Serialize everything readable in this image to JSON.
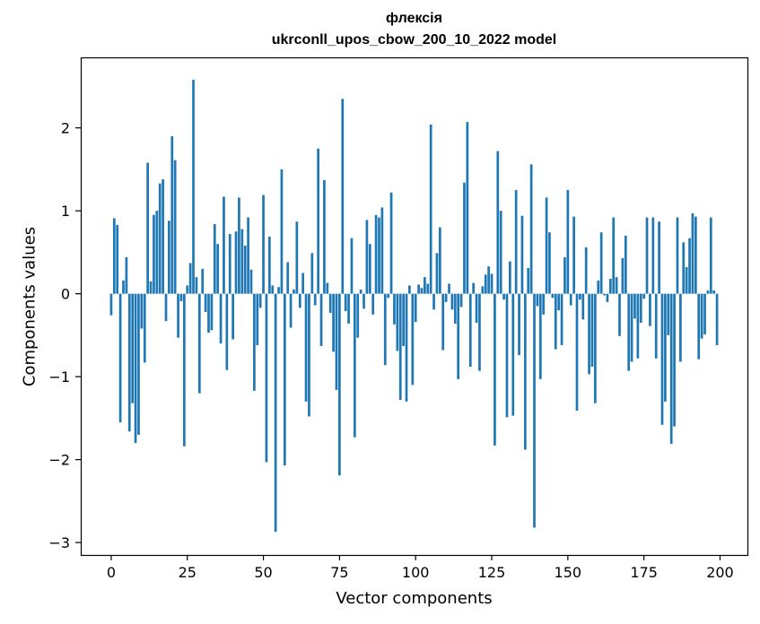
{
  "chart_data": {
    "type": "bar",
    "title": "флексія",
    "subtitle": "ukrconll_upos_cbow_200_10_2022 model",
    "xlabel": "Vector components",
    "ylabel": "Components values",
    "xlim": [
      -10,
      209
    ],
    "ylim": [
      -3.15,
      2.85
    ],
    "xticks": [
      0,
      25,
      50,
      75,
      100,
      125,
      150,
      175,
      200
    ],
    "yticks": [
      -3,
      -2,
      -1,
      0,
      1,
      2
    ],
    "ytick_labels": [
      "−3",
      "−2",
      "−1",
      "0",
      "1",
      "2"
    ],
    "grid": false,
    "bar_color": "#1f77b4",
    "x": [
      0,
      1,
      2,
      3,
      4,
      5,
      6,
      7,
      8,
      9,
      10,
      11,
      12,
      13,
      14,
      15,
      16,
      17,
      18,
      19,
      20,
      21,
      22,
      23,
      24,
      25,
      26,
      27,
      28,
      29,
      30,
      31,
      32,
      33,
      34,
      35,
      36,
      37,
      38,
      39,
      40,
      41,
      42,
      43,
      44,
      45,
      46,
      47,
      48,
      49,
      50,
      51,
      52,
      53,
      54,
      55,
      56,
      57,
      58,
      59,
      60,
      61,
      62,
      63,
      64,
      65,
      66,
      67,
      68,
      69,
      70,
      71,
      72,
      73,
      74,
      75,
      76,
      77,
      78,
      79,
      80,
      81,
      82,
      83,
      84,
      85,
      86,
      87,
      88,
      89,
      90,
      91,
      92,
      93,
      94,
      95,
      96,
      97,
      98,
      99,
      100,
      101,
      102,
      103,
      104,
      105,
      106,
      107,
      108,
      109,
      110,
      111,
      112,
      113,
      114,
      115,
      116,
      117,
      118,
      119,
      120,
      121,
      122,
      123,
      124,
      125,
      126,
      127,
      128,
      129,
      130,
      131,
      132,
      133,
      134,
      135,
      136,
      137,
      138,
      139,
      140,
      141,
      142,
      143,
      144,
      145,
      146,
      147,
      148,
      149,
      150,
      151,
      152,
      153,
      154,
      155,
      156,
      157,
      158,
      159,
      160,
      161,
      162,
      163,
      164,
      165,
      166,
      167,
      168,
      169,
      170,
      171,
      172,
      173,
      174,
      175,
      176,
      177,
      178,
      179,
      180,
      181,
      182,
      183,
      184,
      185,
      186,
      187,
      188,
      189,
      190,
      191,
      192,
      193,
      194,
      195,
      196,
      197,
      198,
      199
    ],
    "values": [
      -0.26,
      0.91,
      0.83,
      -1.55,
      0.16,
      0.44,
      -1.66,
      -1.32,
      -1.8,
      -1.7,
      -0.42,
      -0.83,
      1.58,
      0.15,
      0.95,
      1.0,
      1.33,
      1.38,
      -0.33,
      0.88,
      1.9,
      1.61,
      -0.53,
      -0.09,
      -1.84,
      0.1,
      0.37,
      2.58,
      0.2,
      -1.2,
      0.3,
      -0.22,
      -0.47,
      -0.44,
      0.84,
      0.6,
      -0.6,
      1.17,
      -0.92,
      0.72,
      -0.55,
      0.75,
      1.16,
      0.78,
      0.58,
      0.92,
      0.29,
      -1.17,
      -0.62,
      -0.17,
      1.19,
      -2.03,
      0.69,
      0.1,
      -2.87,
      0.08,
      1.5,
      -2.07,
      0.38,
      -0.41,
      0.05,
      0.87,
      -0.17,
      0.25,
      -1.3,
      -1.48,
      0.49,
      -0.14,
      1.75,
      -0.63,
      1.37,
      0.13,
      -0.23,
      -0.7,
      -1.16,
      -2.19,
      2.35,
      -0.21,
      -0.36,
      0.67,
      -1.73,
      -0.53,
      0.05,
      -0.18,
      0.89,
      0.6,
      -0.25,
      0.95,
      0.92,
      1.04,
      -0.86,
      -0.05,
      1.22,
      -0.37,
      -0.69,
      -1.28,
      -0.63,
      -1.3,
      0.1,
      -1.1,
      -0.34,
      0.11,
      0.07,
      0.2,
      0.12,
      2.04,
      -0.19,
      0.49,
      0.8,
      -0.68,
      -0.1,
      0.12,
      -0.19,
      -0.36,
      -1.03,
      -0.16,
      1.34,
      2.07,
      -0.88,
      0.13,
      -0.35,
      -0.93,
      0.09,
      0.23,
      0.33,
      0.24,
      -1.83,
      1.72,
      1.0,
      -0.07,
      -1.49,
      0.39,
      -1.47,
      1.25,
      -0.74,
      0.94,
      -1.88,
      0.31,
      1.56,
      -2.82,
      -0.15,
      -1.03,
      -0.25,
      1.16,
      0.74,
      -0.05,
      -0.67,
      -0.2,
      -0.62,
      0.44,
      1.25,
      -0.14,
      0.93,
      -1.41,
      -0.07,
      -0.31,
      0.56,
      -0.97,
      -0.88,
      -1.32,
      0.16,
      0.74,
      -0.02,
      -0.1,
      0.18,
      0.92,
      0.2,
      -0.51,
      0.43,
      0.7,
      -0.93,
      -0.82,
      -0.3,
      -0.78,
      -0.35,
      -0.06,
      0.92,
      -0.39,
      0.92,
      -0.78,
      0.87,
      -1.58,
      -1.3,
      -0.5,
      -1.81,
      -1.6,
      0.92,
      -0.82,
      0.62,
      0.32,
      0.67,
      0.97,
      0.93,
      -0.79,
      -0.54,
      -0.49,
      0.04,
      0.92,
      0.04,
      -0.62
    ]
  }
}
